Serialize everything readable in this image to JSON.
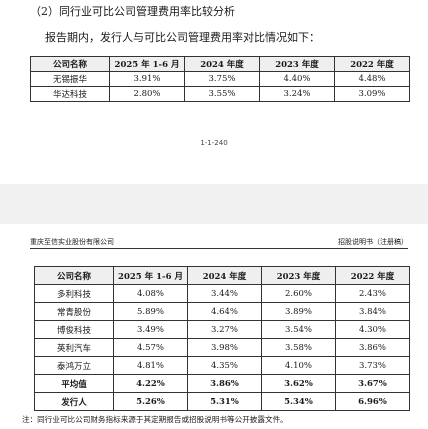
{
  "section_heading": "（2）同行业可比公司管理费用率比较分析",
  "intro": "报告期内，发行人与可比公司管理费用率对比情况如下：",
  "table_top": {
    "headers": [
      "公司名称",
      "2025 年 1-6 月",
      "2024 年度",
      "2023 年度",
      "2022 年度"
    ],
    "rows": [
      [
        "无锡振华",
        "3.91%",
        "3.75%",
        "4.40%",
        "4.48%"
      ],
      [
        "华达科技",
        "2.80%",
        "3.55%",
        "3.24%",
        "3.09%"
      ]
    ]
  },
  "page_number": "1-1-240",
  "header": {
    "left": "重庆至信实业股份有限公司",
    "right": "招股说明书（注册稿）"
  },
  "table_bottom": {
    "headers": [
      "公司名称",
      "2025 年 1-6 月",
      "2024 年度",
      "2023 年度",
      "2022 年度"
    ],
    "rows": [
      [
        "多利科技",
        "4.08%",
        "3.44%",
        "2.60%",
        "2.43%"
      ],
      [
        "常青股份",
        "5.89%",
        "4.64%",
        "3.89%",
        "3.84%"
      ],
      [
        "博俊科技",
        "3.49%",
        "3.27%",
        "3.54%",
        "4.30%"
      ],
      [
        "英利汽车",
        "4.57%",
        "3.98%",
        "3.58%",
        "3.86%"
      ],
      [
        "泰鸿万立",
        "4.81%",
        "4.35%",
        "4.10%",
        "3.73%"
      ]
    ],
    "average": [
      "平均值",
      "4.22%",
      "3.86%",
      "3.62%",
      "3.67%"
    ],
    "issuer": [
      "发行人",
      "5.26%",
      "5.31%",
      "5.34%",
      "6.96%"
    ]
  },
  "footnote": "注：同行业可比公司财务指标来源于其定期报告或招股说明书等公开披露文件。"
}
